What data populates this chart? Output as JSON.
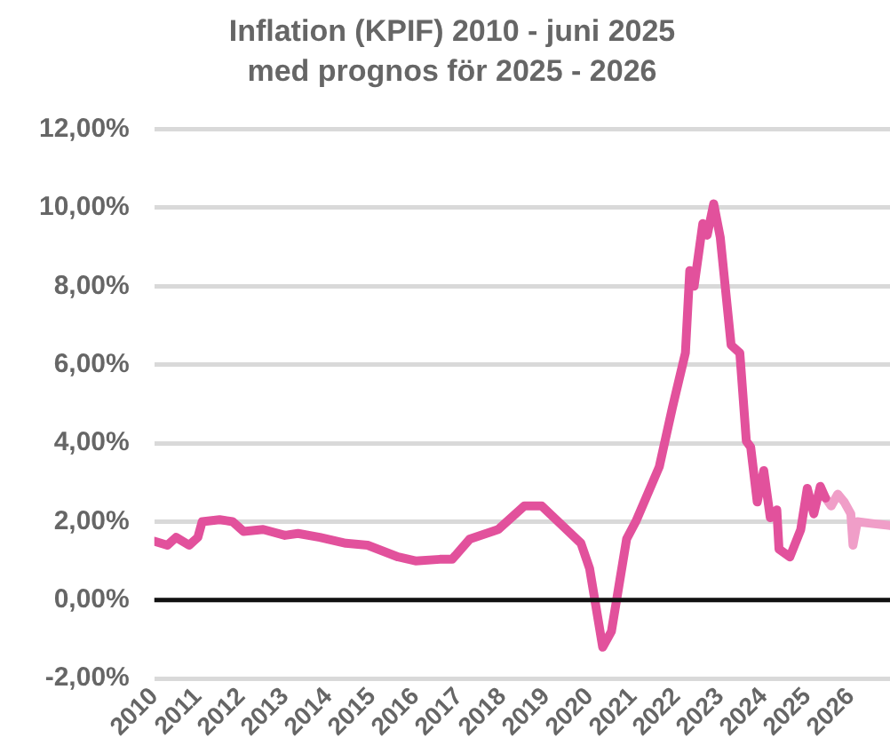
{
  "chart_data": {
    "type": "line",
    "title": "Inflation (KPIF) 2010 - juni 2025",
    "subtitle": "med prognos för 2025 - 2026",
    "xlim": [
      2010,
      2026.9
    ],
    "xticks": [
      2010,
      2011,
      2012,
      2013,
      2014,
      2015,
      2016,
      2017,
      2018,
      2019,
      2020,
      2021,
      2022,
      2023,
      2024,
      2025,
      2026
    ],
    "ylim": [
      -2,
      12
    ],
    "yticks": [
      {
        "value": -2,
        "label": "-2,00%"
      },
      {
        "value": 0,
        "label": "0,00%"
      },
      {
        "value": 2,
        "label": "2,00%"
      },
      {
        "value": 4,
        "label": "4,00%"
      },
      {
        "value": 6,
        "label": "6,00%"
      },
      {
        "value": 8,
        "label": "8,00%"
      },
      {
        "value": 10,
        "label": "10,00%"
      },
      {
        "value": 12,
        "label": "12,00%"
      }
    ],
    "grid": "y",
    "legend": false,
    "marker": "none",
    "line_style": "solid",
    "ref_lines": [
      {
        "axis": "y",
        "value": 0,
        "color": "#111111"
      }
    ],
    "series": [
      {
        "color": "#e2519c",
        "x": [
          2010,
          2010.3,
          2010.5,
          2010.8,
          2011,
          2011.1,
          2011.5,
          2011.8,
          2012.05,
          2012.5,
          2013,
          2013.3,
          2013.8,
          2014.4,
          2014.9,
          2015.6,
          2016.0,
          2016.56,
          2016.84,
          2017.25,
          2017.9,
          2018.5,
          2018.9,
          2019.4,
          2019.8,
          2020.0,
          2020.3,
          2020.5,
          2020.85,
          2021.06,
          2021.6,
          2021.9,
          2022.2,
          2022.3,
          2022.4,
          2022.6,
          2022.7,
          2022.85,
          2023.0,
          2023.25,
          2023.45,
          2023.6,
          2023.7,
          2023.85,
          2024.0,
          2024.15,
          2024.3,
          2024.35,
          2024.6,
          2024.85,
          2025.0,
          2025.15,
          2025.3,
          2025.42
        ],
        "values": [
          1.5,
          1.4,
          1.6,
          1.4,
          1.6,
          2.0,
          2.05,
          2.0,
          1.75,
          1.8,
          1.65,
          1.7,
          1.6,
          1.45,
          1.4,
          1.1,
          1.0,
          1.04,
          1.04,
          1.56,
          1.8,
          2.4,
          2.4,
          1.87,
          1.45,
          0.8,
          -1.2,
          -0.8,
          1.56,
          2.0,
          3.4,
          4.9,
          6.3,
          8.4,
          8.0,
          9.6,
          9.3,
          10.1,
          9.25,
          6.5,
          6.3,
          4.05,
          3.9,
          2.5,
          3.3,
          2.1,
          2.3,
          1.3,
          1.1,
          1.8,
          2.85,
          2.2,
          2.9,
          2.6
        ]
      },
      {
        "color": "#f09ec8",
        "x": [
          2025.42,
          2025.55,
          2025.7,
          2025.85,
          2026.0,
          2026.05,
          2026.15,
          2026.5,
          2026.9
        ],
        "values": [
          2.6,
          2.4,
          2.7,
          2.5,
          2.2,
          1.4,
          2.0,
          1.95,
          1.9
        ]
      }
    ]
  }
}
